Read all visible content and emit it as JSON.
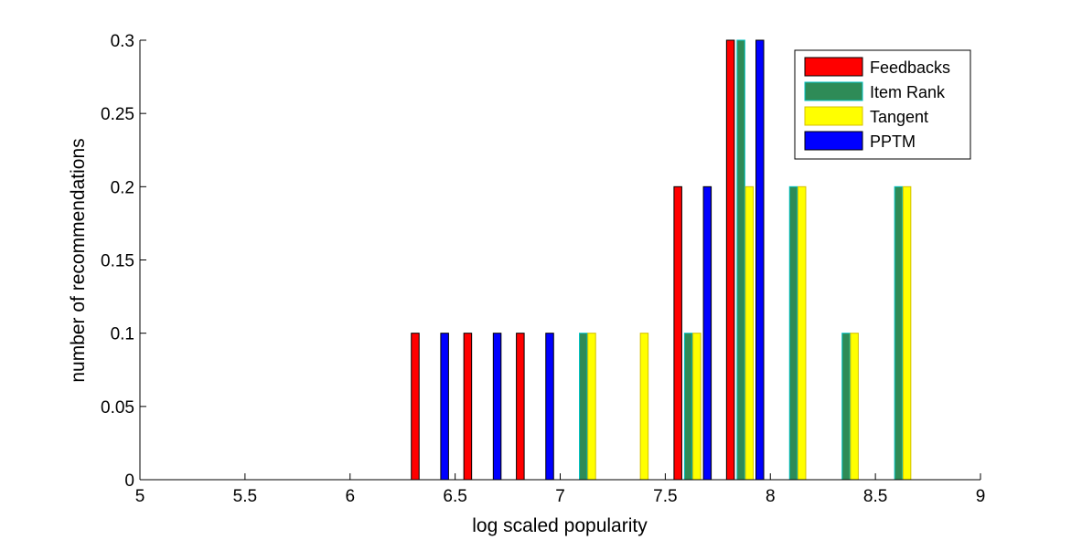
{
  "chart_data": {
    "type": "bar",
    "xlabel": "log scaled popularity",
    "ylabel": "number of recommendations",
    "xlim": [
      5,
      9
    ],
    "ylim": [
      0,
      0.3
    ],
    "xticks": [
      "5",
      "5.5",
      "6",
      "6.5",
      "7",
      "7.5",
      "8",
      "8.5",
      "9"
    ],
    "yticks": [
      "0",
      "0.05",
      "0.1",
      "0.15",
      "0.2",
      "0.25",
      "0.3"
    ],
    "grid": false,
    "legend_position": "top-right",
    "series": [
      {
        "name": "Feedbacks",
        "color": "#ff0000",
        "edge": "#000000",
        "x": [
          5.1,
          5.35,
          5.6,
          5.85,
          6.1,
          6.31,
          6.56,
          6.81,
          7.06,
          7.31,
          7.56,
          7.81,
          8.06,
          8.31,
          8.56,
          8.81
        ],
        "values": [
          0,
          0,
          0,
          0,
          0,
          0.1,
          0.1,
          0.1,
          0,
          0,
          0.2,
          0.3,
          0,
          0,
          0,
          0
        ]
      },
      {
        "name": "Item Rank",
        "color": "#2e8b57",
        "edge": "#00c0c0",
        "x": [
          5.12,
          5.37,
          5.62,
          5.87,
          6.12,
          6.35,
          6.6,
          6.85,
          7.11,
          7.36,
          7.61,
          7.86,
          8.11,
          8.36,
          8.61,
          8.86
        ],
        "values": [
          0,
          0,
          0,
          0,
          0,
          0,
          0,
          0,
          0.1,
          0,
          0.1,
          0.3,
          0.2,
          0.1,
          0.2,
          0
        ]
      },
      {
        "name": "Tangent",
        "color": "#ffff00",
        "edge": "#d4c000",
        "x": [
          5.14,
          5.39,
          5.64,
          5.89,
          6.14,
          6.39,
          6.64,
          6.89,
          7.15,
          7.4,
          7.65,
          7.9,
          8.15,
          8.4,
          8.65,
          8.9
        ],
        "values": [
          0,
          0,
          0,
          0,
          0,
          0,
          0,
          0,
          0.1,
          0.1,
          0.1,
          0.2,
          0.2,
          0.1,
          0.2,
          0
        ]
      },
      {
        "name": "PPTM",
        "color": "#0000ff",
        "edge": "#000000",
        "x": [
          5.16,
          5.41,
          5.66,
          5.91,
          6.16,
          6.45,
          6.7,
          6.95,
          7.2,
          7.45,
          7.7,
          7.95,
          8.2,
          8.45,
          8.7,
          8.95
        ],
        "values": [
          0,
          0,
          0,
          0,
          0,
          0.1,
          0.1,
          0.1,
          0,
          0,
          0.2,
          0.3,
          0,
          0,
          0,
          0
        ]
      }
    ]
  }
}
